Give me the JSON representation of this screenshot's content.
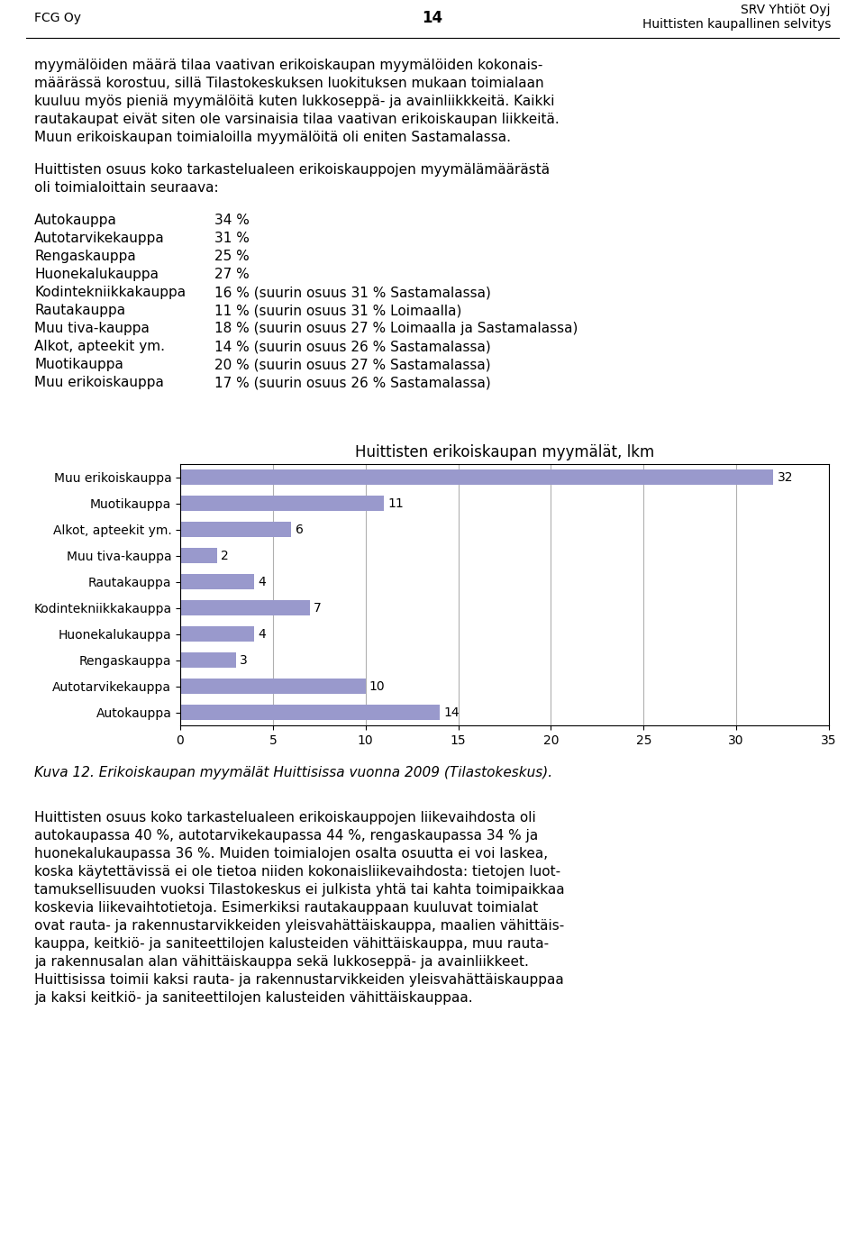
{
  "header": {
    "left": "FCG Oy",
    "center": "14",
    "right": "SRV Yhtiöt Oyj\nHuittisten kaupallinen selvitys"
  },
  "text_before": [
    [
      "myymälöiden määrä tilaa vaativan erikoiskaupan myymälöiden kokonais-",
      "määrässä korostuu, sillä Tilastokeskuksen luokituksen mukaan toimialaan",
      "kuuluu myös pieniä myymälöitä kuten lukkoseppä- ja avainliikkkeitä. Kaikki",
      "rautakaupat eivät siten ole varsinaisia tilaa vaativan erikoiskaupan liikkeitä.",
      "Muun erikoiskaupan toimialoilla myymälöitä oli eniten Sastamalassa."
    ],
    [
      "Huittisten osuus koko tarkastelualeen erikoiskauppojen myymälämäärästä",
      "oli toimialoittain seuraava:"
    ]
  ],
  "list_items": [
    [
      "Autokauppa",
      "34 %"
    ],
    [
      "Autotarvikekauppa",
      "31 %"
    ],
    [
      "Rengaskauppa",
      "25 %"
    ],
    [
      "Huonekalukauppa",
      "27 %"
    ],
    [
      "Kodintekniikkakauppa",
      "16 % (suurin osuus 31 % Sastamalassa)"
    ],
    [
      "Rautakauppa",
      "11 % (suurin osuus 31 % Loimaalla)"
    ],
    [
      "Muu tiva-kauppa",
      "18 % (suurin osuus 27 % Loimaalla ja Sastamalassa)"
    ],
    [
      "Alkot, apteekit ym.",
      "14 % (suurin osuus 26 % Sastamalassa)"
    ],
    [
      "Muotikauppa",
      "20 % (suurin osuus 27 % Sastamalassa)"
    ],
    [
      "Muu erikoiskauppa",
      "17 % (suurin osuus 26 % Sastamalassa)"
    ]
  ],
  "chart_data": {
    "type": "bar",
    "orientation": "horizontal",
    "title": "Huittisten erikoiskaupan myymälät, lkm",
    "categories": [
      "Muu erikoiskauppa",
      "Muotikauppa",
      "Alkot, apteekit ym.",
      "Muu tiva-kauppa",
      "Rautakauppa",
      "Kodintekniikkakauppa",
      "Huonekalukauppa",
      "Rengaskauppa",
      "Autotarvikekauppa",
      "Autokauppa"
    ],
    "values": [
      32,
      11,
      6,
      2,
      4,
      7,
      4,
      3,
      10,
      14
    ],
    "color": "#9999cc",
    "xlim": [
      0,
      35
    ],
    "xticks": [
      0,
      5,
      10,
      15,
      20,
      25,
      30,
      35
    ],
    "grid": true,
    "data_labels": true
  },
  "caption": "Kuva 12. Erikoiskaupan myymälät Huittisissa vuonna 2009 (Tilastokeskus).",
  "text_after": [
    "Huittisten osuus koko tarkastelualeen erikoiskauppojen liikevaihdosta oli",
    "autokaupassa 40 %, autotarvikekaupassa 44 %, rengaskaupassa 34 % ja",
    "huonekalukaupassa 36 %. Muiden toimialojen osalta osuutta ei voi laskea,",
    "koska käytettävissä ei ole tietoa niiden kokonaisliikevaihdosta: tietojen luot-",
    "tamuksellisuuden vuoksi Tilastokeskus ei julkista yhtä tai kahta toimipaikkaa",
    "koskevia liikevaihtotietoja. Esimerkiksi rautakauppaan kuuluvat toimialat",
    "ovat rauta- ja rakennustarvikkeiden yleisvahättäiskauppa, maalien vähittäis-",
    "kauppa, keitkiö- ja saniteettilojen kalusteiden vähittäiskauppa, muu rauta-",
    "ja rakennusalan alan vähittäiskauppa sekä lukkoseppä- ja avainliikkeet.",
    "Huittisissa toimii kaksi rauta- ja rakennustarvikkeiden yleisvahättäiskauppaa",
    "ja kaksi keitkiö- ja saniteettilojen kalusteiden vähittäiskauppaa."
  ]
}
